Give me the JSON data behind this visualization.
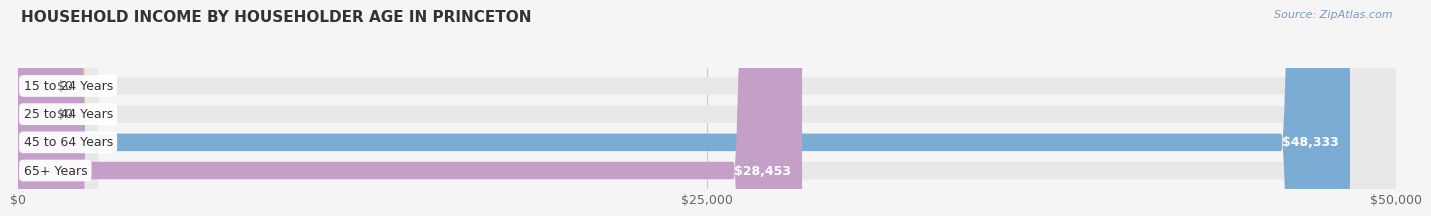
{
  "title": "HOUSEHOLD INCOME BY HOUSEHOLDER AGE IN PRINCETON",
  "source": "Source: ZipAtlas.com",
  "categories": [
    "15 to 24 Years",
    "25 to 44 Years",
    "45 to 64 Years",
    "65+ Years"
  ],
  "values": [
    0,
    0,
    48333,
    28453
  ],
  "bar_colors": [
    "#f5c49a",
    "#f4a0a8",
    "#7bacd4",
    "#c4a0c8"
  ],
  "xlim": [
    0,
    50000
  ],
  "xticks": [
    0,
    25000,
    50000
  ],
  "xtick_labels": [
    "$0",
    "$25,000",
    "$50,000"
  ],
  "value_labels": [
    "$0",
    "$0",
    "$48,333",
    "$28,453"
  ],
  "bg_color": "#f5f5f5",
  "title_fontsize": 11,
  "tick_fontsize": 9,
  "label_fontsize": 9,
  "value_fontsize": 9
}
